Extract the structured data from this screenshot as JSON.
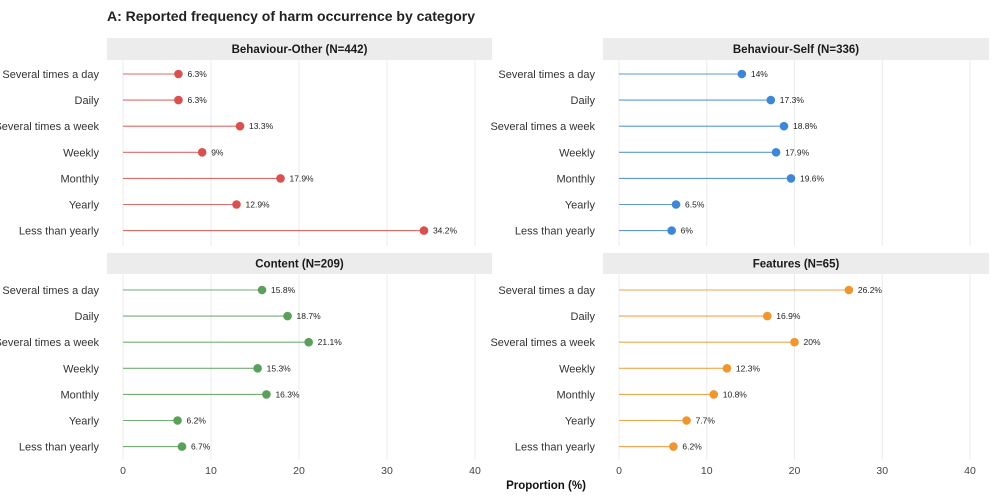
{
  "chart_data": {
    "type": "lollipop",
    "title": "A: Reported frequency of harm occurrence by category",
    "xlabel": "Proportion (%)",
    "ylabel": "",
    "xlim": [
      0,
      40
    ],
    "xticks": [
      0,
      10,
      20,
      30,
      40
    ],
    "grid": true,
    "categories": [
      "Several times a day",
      "Daily",
      "Several times a week",
      "Weekly",
      "Monthly",
      "Yearly",
      "Less than yearly"
    ],
    "panels": [
      {
        "name": "Behaviour-Other (N=442)",
        "color": "#d95050",
        "values": [
          6.3,
          6.3,
          13.3,
          9,
          17.9,
          12.9,
          34.2
        ],
        "labels": [
          "6.3%",
          "6.3%",
          "13.3%",
          "9%",
          "17.9%",
          "12.9%",
          "34.2%"
        ]
      },
      {
        "name": "Behaviour-Self (N=336)",
        "color": "#3f87d6",
        "values": [
          14,
          17.3,
          18.8,
          17.9,
          19.6,
          6.5,
          6
        ],
        "labels": [
          "14%",
          "17.3%",
          "18.8%",
          "17.9%",
          "19.6%",
          "6.5%",
          "6%"
        ]
      },
      {
        "name": "Content (N=209)",
        "color": "#5aa05a",
        "values": [
          15.8,
          18.7,
          21.1,
          15.3,
          16.3,
          6.2,
          6.7
        ],
        "labels": [
          "15.8%",
          "18.7%",
          "21.1%",
          "15.3%",
          "16.3%",
          "6.2%",
          "6.7%"
        ]
      },
      {
        "name": "Features (N=65)",
        "color": "#f0962e",
        "values": [
          26.2,
          16.9,
          20,
          12.3,
          10.8,
          7.7,
          6.2
        ],
        "labels": [
          "26.2%",
          "16.9%",
          "20%",
          "12.3%",
          "10.8%",
          "7.7%",
          "6.2%"
        ]
      }
    ]
  }
}
